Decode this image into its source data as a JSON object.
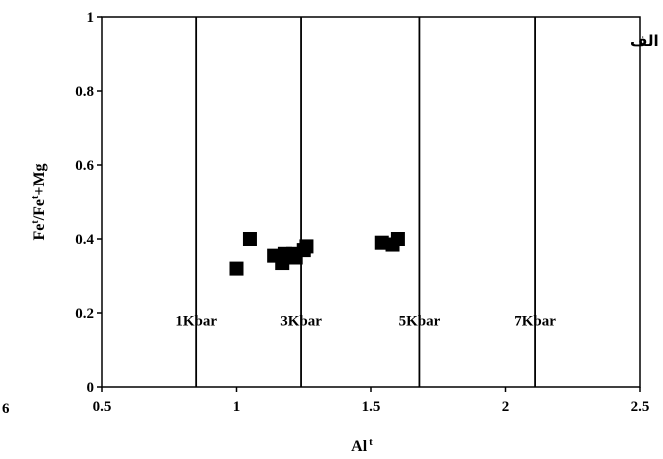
{
  "chart_data": {
    "type": "scatter",
    "corner_label": "الف",
    "xlabel": "Al",
    "xlabel_sup": "t",
    "ylabel_parts": [
      "Fe",
      "t",
      "/Fe",
      "t",
      "+Mg"
    ],
    "xlim": [
      0.5,
      2.5
    ],
    "ylim": [
      0,
      1
    ],
    "xticks": [
      {
        "value": 0.5,
        "label": "0.5"
      },
      {
        "value": 1,
        "label": "1"
      },
      {
        "value": 1.5,
        "label": "1.5"
      },
      {
        "value": 2,
        "label": "2"
      },
      {
        "value": 2.5,
        "label": "2.5"
      }
    ],
    "yticks": [
      {
        "value": 0,
        "label": "0"
      },
      {
        "value": 0.2,
        "label": "0.2"
      },
      {
        "value": 0.4,
        "label": "0.4"
      },
      {
        "value": 0.6,
        "label": "0.6"
      },
      {
        "value": 0.8,
        "label": "0.8"
      },
      {
        "value": 1,
        "label": "1"
      }
    ],
    "edge_fragment": "6",
    "isobars": [
      {
        "x": 0.85,
        "label": "1Kbar"
      },
      {
        "x": 1.24,
        "label": "3Kbar"
      },
      {
        "x": 1.68,
        "label": "5Kbar"
      },
      {
        "x": 2.11,
        "label": "7Kbar"
      }
    ],
    "isobar_label_y": 0.18,
    "points": [
      {
        "x": 1.0,
        "y": 0.32
      },
      {
        "x": 1.05,
        "y": 0.4
      },
      {
        "x": 1.14,
        "y": 0.355
      },
      {
        "x": 1.17,
        "y": 0.335
      },
      {
        "x": 1.18,
        "y": 0.36
      },
      {
        "x": 1.19,
        "y": 0.35
      },
      {
        "x": 1.21,
        "y": 0.36
      },
      {
        "x": 1.22,
        "y": 0.35
      },
      {
        "x": 1.25,
        "y": 0.37
      },
      {
        "x": 1.26,
        "y": 0.38
      },
      {
        "x": 1.54,
        "y": 0.39
      },
      {
        "x": 1.58,
        "y": 0.385
      },
      {
        "x": 1.6,
        "y": 0.4
      }
    ],
    "marker": "square",
    "marker_color": "#000000",
    "grid": false,
    "legend": "none"
  }
}
